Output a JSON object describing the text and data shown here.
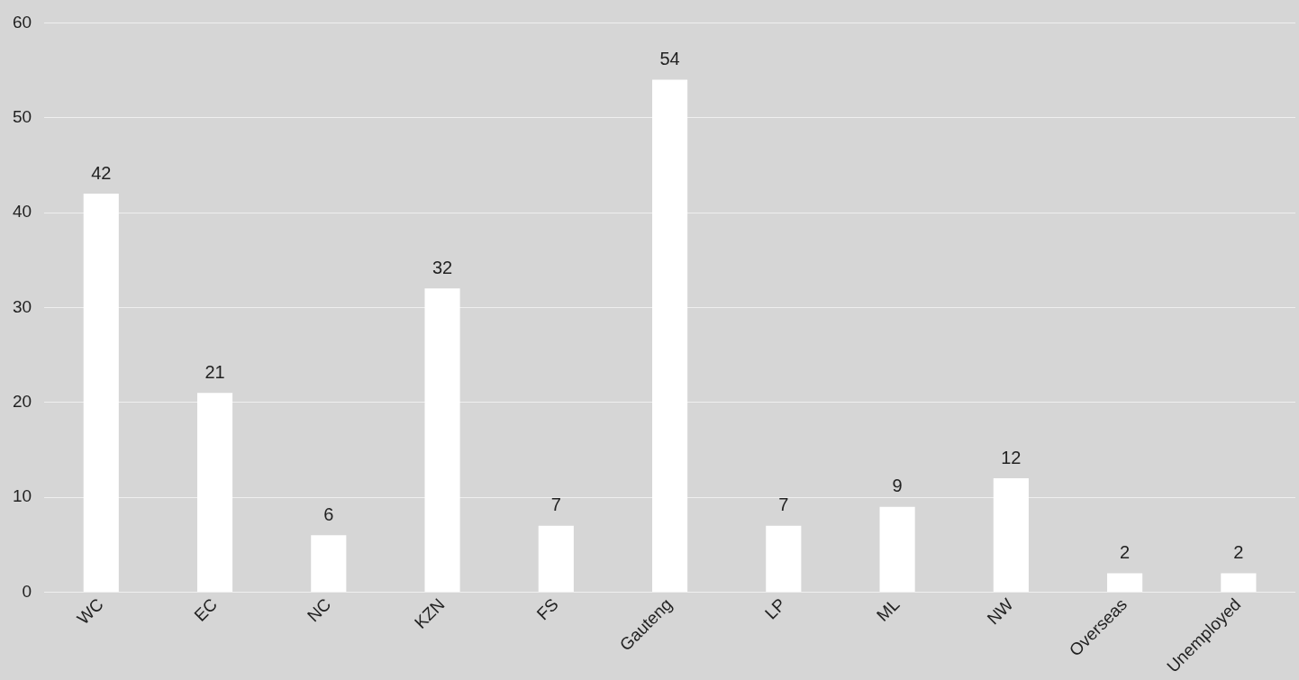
{
  "chart_data": {
    "type": "bar",
    "categories": [
      "WC",
      "EC",
      "NC",
      "KZN",
      "FS",
      "Gauteng",
      "LP",
      "ML",
      "NW",
      "Overseas",
      "Unemployed"
    ],
    "values": [
      42,
      21,
      6,
      32,
      7,
      54,
      7,
      9,
      12,
      2,
      2
    ],
    "color": "#ffffff",
    "ylim": [
      0,
      60
    ],
    "yticks": [
      0,
      10,
      20,
      30,
      40,
      50,
      60
    ],
    "grid": "y",
    "data_labels": true,
    "legend": false
  }
}
